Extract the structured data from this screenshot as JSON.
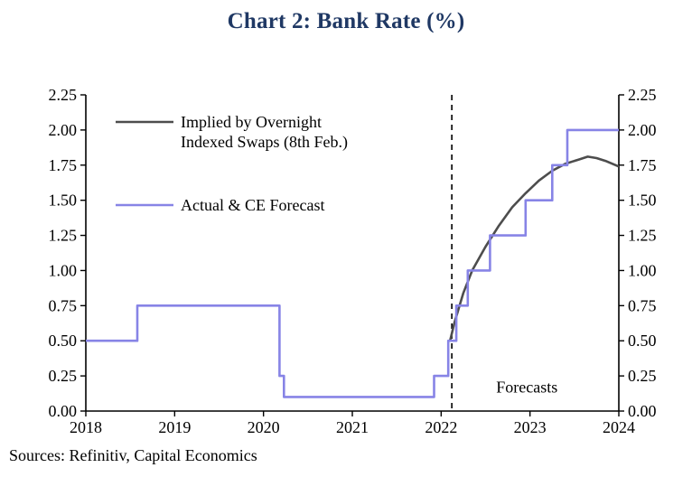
{
  "title": "Chart 2: Bank Rate (%)",
  "sources": "Sources: Refinitiv, Capital Economics",
  "colors": {
    "title": "#1f3864",
    "axis": "#000000",
    "ois_line": "#4d4d4d",
    "actual_line": "#8784e6",
    "forecast_divider": "#000000"
  },
  "chart_data": {
    "type": "line",
    "title": "Chart 2: Bank Rate (%)",
    "xlabel": "",
    "ylabel": "",
    "xlim": [
      2018,
      2024
    ],
    "ylim": [
      0,
      2.25
    ],
    "x_ticks": [
      2018,
      2019,
      2020,
      2021,
      2022,
      2023,
      2024
    ],
    "y_ticks": [
      0.0,
      0.25,
      0.5,
      0.75,
      1.0,
      1.25,
      1.5,
      1.75,
      2.0,
      2.25
    ],
    "grid": false,
    "legend_position": "top-left-inside",
    "forecast_divider_x": 2022.12,
    "annotation": {
      "text": "Forecasts",
      "x": 2022.62,
      "y": 0.17
    },
    "legend": [
      {
        "series": "ois",
        "lines": [
          "Implied by Overnight",
          "Indexed Swaps (8th Feb.)"
        ]
      },
      {
        "series": "actual",
        "lines": [
          "Actual & CE Forecast"
        ]
      }
    ],
    "series": [
      {
        "id": "ois",
        "name": "Implied by Overnight Indexed Swaps (8th Feb.)",
        "color": "#4d4d4d",
        "width": 2.6,
        "points": [
          [
            2022.1,
            0.5
          ],
          [
            2022.15,
            0.63
          ],
          [
            2022.25,
            0.84
          ],
          [
            2022.35,
            1.0
          ],
          [
            2022.5,
            1.17
          ],
          [
            2022.65,
            1.32
          ],
          [
            2022.8,
            1.45
          ],
          [
            2022.95,
            1.55
          ],
          [
            2023.1,
            1.64
          ],
          [
            2023.25,
            1.71
          ],
          [
            2023.4,
            1.76
          ],
          [
            2023.55,
            1.79
          ],
          [
            2023.65,
            1.81
          ],
          [
            2023.75,
            1.8
          ],
          [
            2023.85,
            1.78
          ],
          [
            2024.0,
            1.74
          ]
        ]
      },
      {
        "id": "actual",
        "name": "Actual & CE Forecast",
        "color": "#8784e6",
        "width": 2.6,
        "points": [
          [
            2018.0,
            0.5
          ],
          [
            2018.58,
            0.5
          ],
          [
            2018.58,
            0.75
          ],
          [
            2020.18,
            0.75
          ],
          [
            2020.18,
            0.25
          ],
          [
            2020.23,
            0.25
          ],
          [
            2020.23,
            0.1
          ],
          [
            2021.92,
            0.1
          ],
          [
            2021.92,
            0.25
          ],
          [
            2022.08,
            0.25
          ],
          [
            2022.08,
            0.5
          ],
          [
            2022.17,
            0.5
          ],
          [
            2022.17,
            0.75
          ],
          [
            2022.3,
            0.75
          ],
          [
            2022.3,
            1.0
          ],
          [
            2022.55,
            1.0
          ],
          [
            2022.55,
            1.25
          ],
          [
            2022.95,
            1.25
          ],
          [
            2022.95,
            1.5
          ],
          [
            2023.25,
            1.5
          ],
          [
            2023.25,
            1.75
          ],
          [
            2023.42,
            1.75
          ],
          [
            2023.42,
            2.0
          ],
          [
            2024.0,
            2.0
          ]
        ]
      }
    ]
  }
}
